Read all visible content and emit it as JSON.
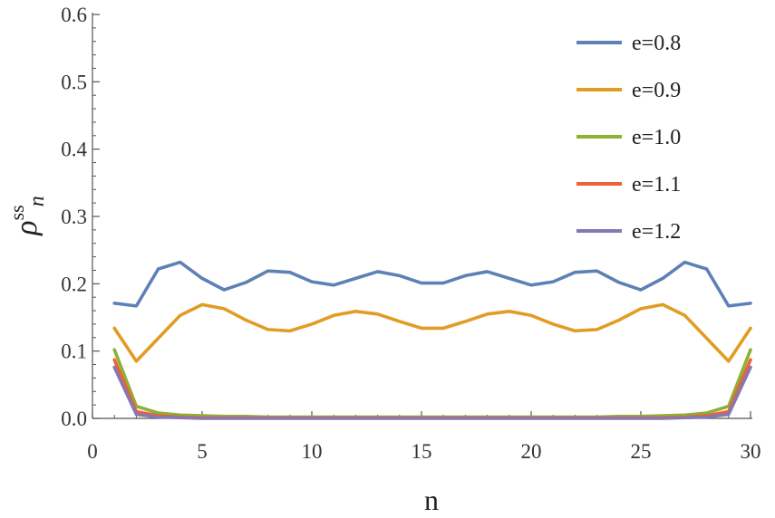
{
  "chart_data": {
    "type": "line",
    "xlabel": "n",
    "ylabel": {
      "base": "ρ",
      "superscript": "ss",
      "subscript": "n"
    },
    "xlim": [
      0,
      30
    ],
    "ylim": [
      0,
      0.6
    ],
    "x_ticks": [
      "0",
      "5",
      "10",
      "15",
      "20",
      "25",
      "30"
    ],
    "y_ticks": [
      "0.0",
      "0.1",
      "0.2",
      "0.3",
      "0.4",
      "0.5",
      "0.6"
    ],
    "grid": false,
    "legend_position": "top-right",
    "x": [
      1,
      2,
      3,
      4,
      5,
      6,
      7,
      8,
      9,
      10,
      11,
      12,
      13,
      14,
      15,
      16,
      17,
      18,
      19,
      20,
      21,
      22,
      23,
      24,
      25,
      26,
      27,
      28,
      29,
      30
    ],
    "series": [
      {
        "name": "e=0.8",
        "color": "#5E81B5",
        "values": [
          0.171,
          0.167,
          0.222,
          0.232,
          0.208,
          0.191,
          0.202,
          0.219,
          0.217,
          0.203,
          0.198,
          0.208,
          0.218,
          0.212,
          0.201,
          0.201,
          0.212,
          0.218,
          0.208,
          0.198,
          0.203,
          0.217,
          0.219,
          0.202,
          0.191,
          0.208,
          0.232,
          0.222,
          0.167,
          0.171
        ]
      },
      {
        "name": "e=0.9",
        "color": "#E19C24",
        "values": [
          0.134,
          0.085,
          0.119,
          0.153,
          0.169,
          0.163,
          0.146,
          0.132,
          0.13,
          0.14,
          0.153,
          0.159,
          0.155,
          0.144,
          0.134,
          0.134,
          0.144,
          0.155,
          0.159,
          0.153,
          0.14,
          0.13,
          0.132,
          0.146,
          0.163,
          0.169,
          0.153,
          0.119,
          0.085,
          0.134
        ]
      },
      {
        "name": "e=1.0",
        "color": "#8FB032",
        "values": [
          0.102,
          0.018,
          0.008,
          0.005,
          0.004,
          0.003,
          0.003,
          0.002,
          0.002,
          0.002,
          0.002,
          0.002,
          0.002,
          0.002,
          0.002,
          0.002,
          0.002,
          0.002,
          0.002,
          0.002,
          0.002,
          0.002,
          0.002,
          0.003,
          0.003,
          0.004,
          0.005,
          0.008,
          0.018,
          0.102
        ]
      },
      {
        "name": "e=1.1",
        "color": "#EB6235",
        "values": [
          0.087,
          0.01,
          0.004,
          0.002,
          0.001,
          0.001,
          0.001,
          0.001,
          0.001,
          0.001,
          0.001,
          0.001,
          0.001,
          0.001,
          0.001,
          0.001,
          0.001,
          0.001,
          0.001,
          0.001,
          0.001,
          0.001,
          0.001,
          0.001,
          0.001,
          0.001,
          0.002,
          0.004,
          0.01,
          0.087
        ]
      },
      {
        "name": "e=1.2",
        "color": "#8778B3",
        "values": [
          0.076,
          0.006,
          0.002,
          0.001,
          0.0,
          0.0,
          0.0,
          0.0,
          0.0,
          0.0,
          0.0,
          0.0,
          0.0,
          0.0,
          0.0,
          0.0,
          0.0,
          0.0,
          0.0,
          0.0,
          0.0,
          0.0,
          0.0,
          0.0,
          0.0,
          0.0,
          0.001,
          0.002,
          0.006,
          0.076
        ]
      }
    ]
  }
}
